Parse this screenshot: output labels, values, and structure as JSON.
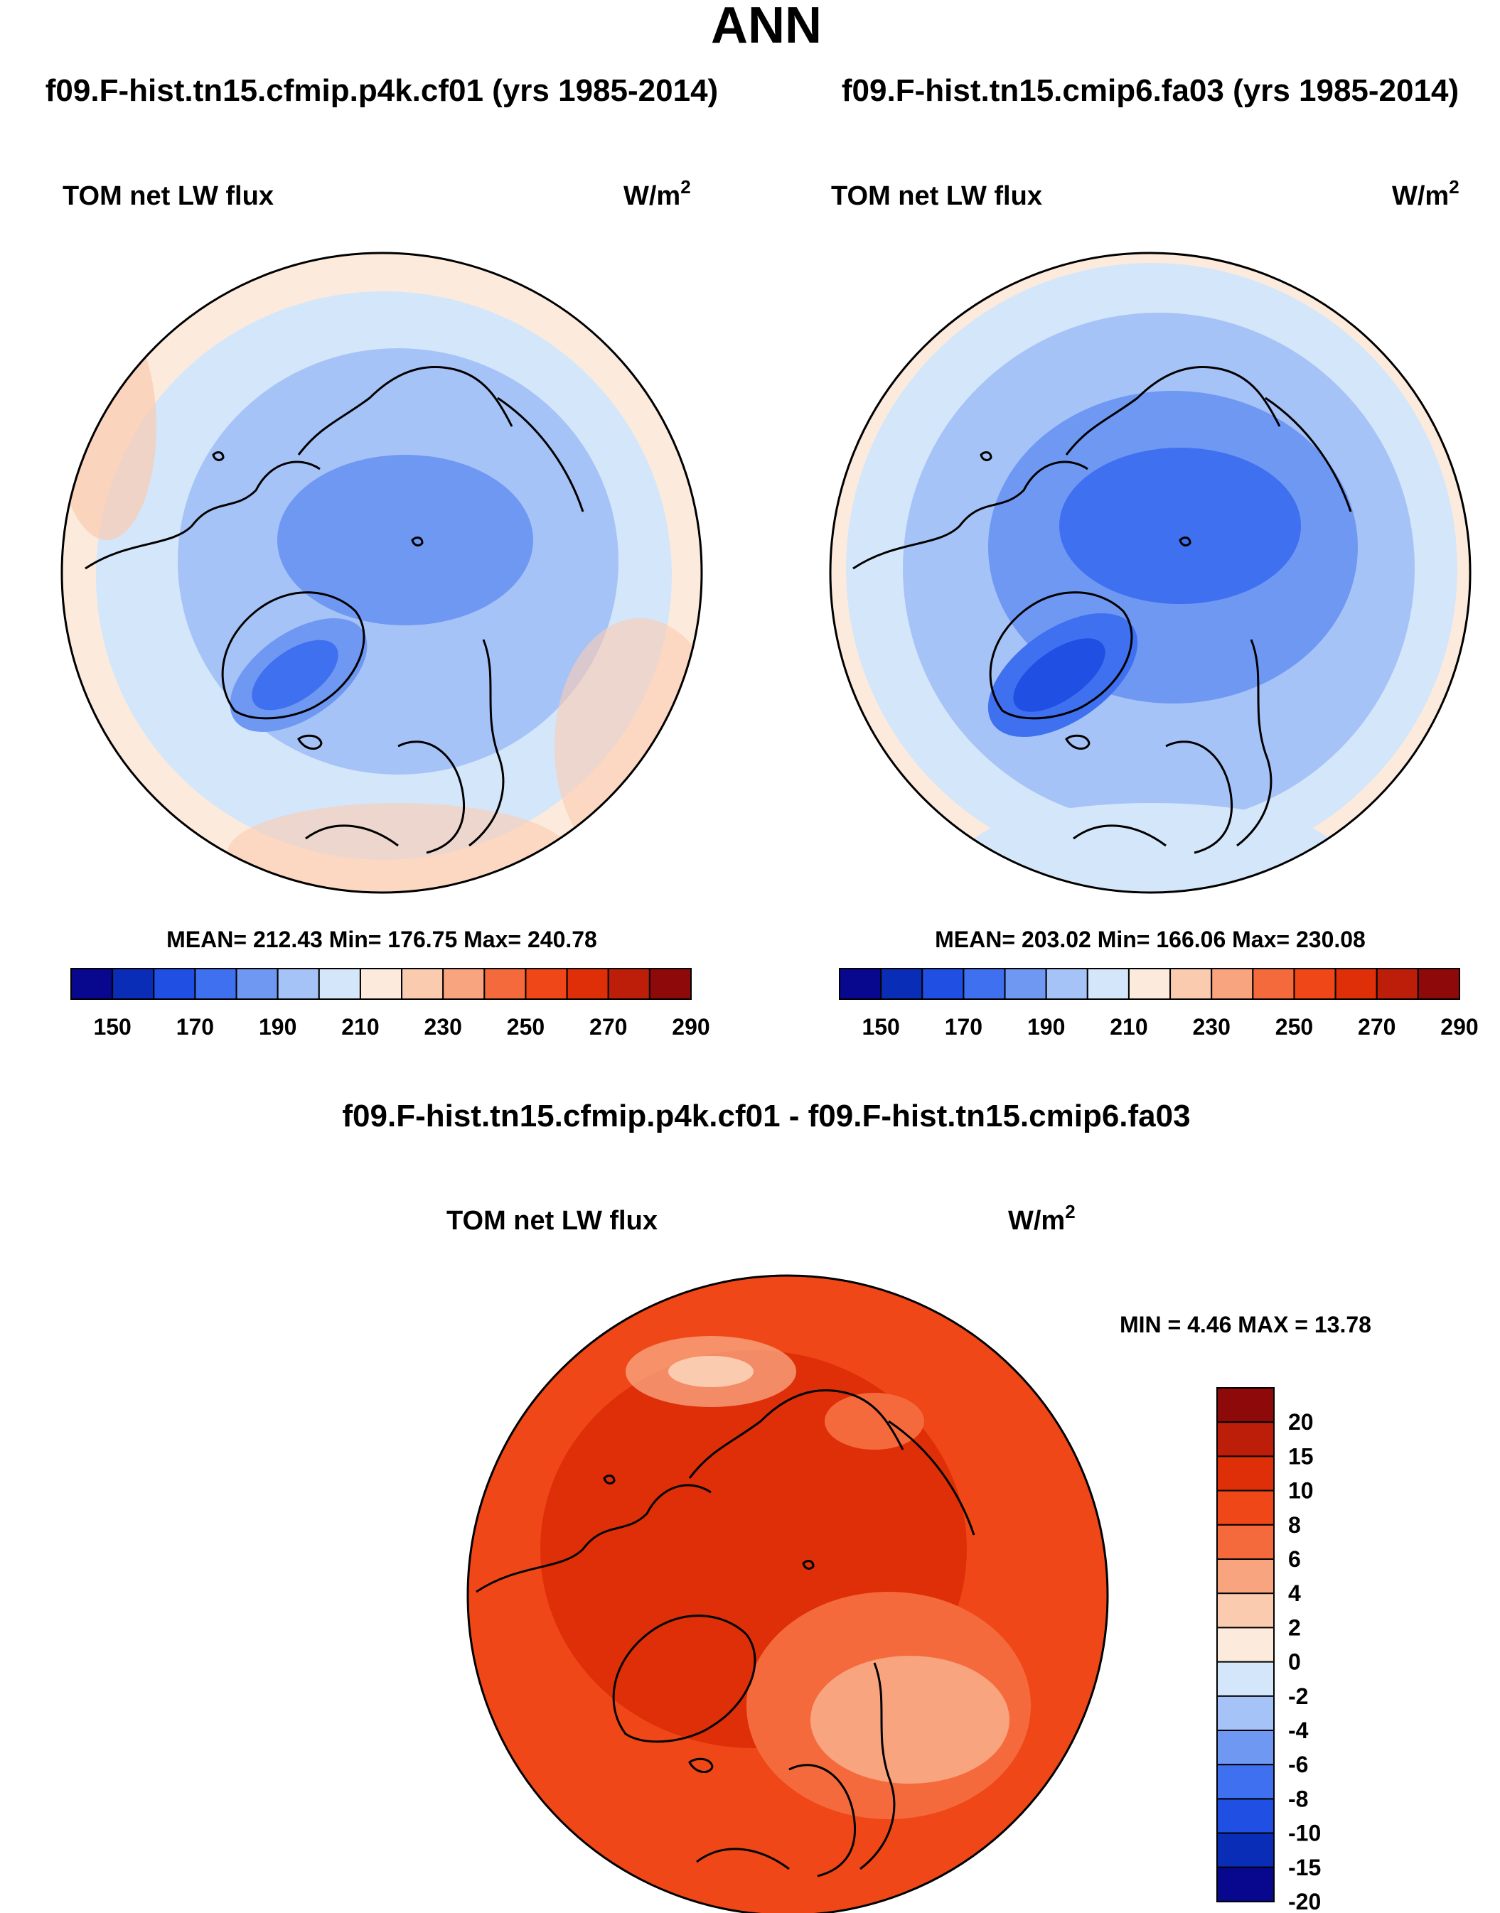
{
  "title": "ANN",
  "colors": {
    "abs": [
      "#08088f",
      "#0a2db8",
      "#1f4fe3",
      "#3f70ef",
      "#6f98f3",
      "#a6c3f7",
      "#d4e6fa",
      "#fcebdc",
      "#fbcbb0",
      "#f8a47e",
      "#f56a3c",
      "#ef4717",
      "#de2f08",
      "#bc1e0a",
      "#8e0a0a"
    ],
    "diff": [
      "#08088f",
      "#0a2db8",
      "#1f4fe3",
      "#3f70ef",
      "#6f98f3",
      "#a6c3f7",
      "#d4e6fa",
      "#fcebdc",
      "#fbcbb0",
      "#f8a47e",
      "#f56a3c",
      "#ef4717",
      "#de2f08",
      "#bc1e0a",
      "#8e0a0a"
    ]
  },
  "panels": [
    {
      "case": "f09.F-hist.tn15.cfmip.p4k.cf01 (yrs 1985-2014)",
      "left_label": "TOM net LW flux",
      "units_base": "W/m",
      "units_exp": "2",
      "stats": "MEAN= 212.43  Min= 176.75  Max= 240.78"
    },
    {
      "case": "f09.F-hist.tn15.cmip6.fa03 (yrs 1985-2014)",
      "left_label": "TOM net LW flux",
      "units_base": "W/m",
      "units_exp": "2",
      "stats": "MEAN= 203.02  Min= 166.06  Max= 230.08"
    }
  ],
  "diff_panel": {
    "case": "f09.F-hist.tn15.cfmip.p4k.cf01 - f09.F-hist.tn15.cmip6.fa03",
    "left_label": "TOM net LW flux",
    "units_base": "W/m",
    "units_exp": "2",
    "stats": "MIN =   4.46 MAX =  13.78"
  },
  "chart_data": [
    {
      "type": "heatmap",
      "projection": "north polar stereographic",
      "title": "f09.F-hist.tn15.cfmip.p4k.cf01 (yrs 1985-2014)",
      "variable": "TOM net LW flux",
      "units": "W/m2",
      "mean": 212.43,
      "min": 176.75,
      "max": 240.78,
      "colorbar_ticks": [
        "150",
        "170",
        "190",
        "210",
        "230",
        "250",
        "270",
        "290"
      ]
    },
    {
      "type": "heatmap",
      "projection": "north polar stereographic",
      "title": "f09.F-hist.tn15.cmip6.fa03 (yrs 1985-2014)",
      "variable": "TOM net LW flux",
      "units": "W/m2",
      "mean": 203.02,
      "min": 166.06,
      "max": 230.08,
      "colorbar_ticks": [
        "150",
        "170",
        "190",
        "210",
        "230",
        "250",
        "270",
        "290"
      ]
    },
    {
      "type": "heatmap",
      "projection": "north polar stereographic",
      "title": "f09.F-hist.tn15.cfmip.p4k.cf01 - f09.F-hist.tn15.cmip6.fa03",
      "variable": "TOM net LW flux",
      "units": "W/m2",
      "min": 4.46,
      "max": 13.78,
      "colorbar_ticks": [
        "20",
        "15",
        "10",
        "8",
        "6",
        "4",
        "2",
        "0",
        "-2",
        "-4",
        "-6",
        "-8",
        "-10",
        "-15",
        "-20"
      ]
    }
  ]
}
